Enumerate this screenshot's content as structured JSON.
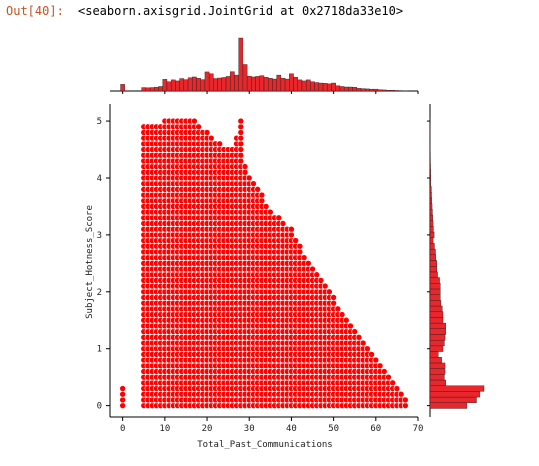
{
  "cell": {
    "prompt": "Out[40]:",
    "repr": "<seaborn.axisgrid.JointGrid at 0x2718da33e10>"
  },
  "colors": {
    "point": "#ff0000",
    "point_edge": "#ffffff",
    "bar": "#e8262b",
    "bar_edge": "#222222",
    "axis": "#000000"
  },
  "chart_data": [
    {
      "type": "scatter",
      "role": "joint",
      "xlabel": "Total_Past_Communications",
      "ylabel": "Subject_Hotness_Score",
      "xlim": [
        -3,
        70
      ],
      "ylim": [
        -0.2,
        5.3
      ],
      "xticks": [
        0,
        10,
        20,
        30,
        40,
        50,
        60,
        70
      ],
      "yticks": [
        0,
        1,
        2,
        3,
        4,
        5
      ],
      "grid": false,
      "description_points": {
        "x_zero_column": {
          "x": 0,
          "y": [
            0,
            0.1,
            0.2,
            0.3
          ]
        },
        "filled_region": {
          "x_min": 5,
          "y_step": 0.1
        },
        "upper_envelope": [
          [
            5,
            4.9
          ],
          [
            7,
            4.9
          ],
          [
            10,
            5.0
          ],
          [
            13,
            5.0
          ],
          [
            17,
            5.0
          ],
          [
            20,
            4.8
          ],
          [
            23,
            4.6
          ],
          [
            26,
            4.5
          ],
          [
            28,
            5.0
          ],
          [
            29,
            4.2
          ],
          [
            31,
            3.9
          ],
          [
            33,
            3.7
          ],
          [
            35,
            3.4
          ],
          [
            37,
            3.3
          ],
          [
            40,
            3.1
          ],
          [
            42,
            2.8
          ],
          [
            44,
            2.5
          ],
          [
            46,
            2.3
          ],
          [
            48,
            2.1
          ],
          [
            50,
            1.9
          ],
          [
            52,
            1.6
          ],
          [
            54,
            1.4
          ],
          [
            56,
            1.2
          ],
          [
            58,
            1.0
          ],
          [
            60,
            0.8
          ],
          [
            62,
            0.6
          ],
          [
            64,
            0.4
          ],
          [
            66,
            0.2
          ],
          [
            67,
            0.1
          ]
        ]
      }
    },
    {
      "type": "bar",
      "role": "marginal-x",
      "x": [
        0,
        5,
        6,
        7,
        8,
        9,
        10,
        11,
        12,
        13,
        14,
        15,
        16,
        17,
        18,
        19,
        20,
        21,
        22,
        23,
        24,
        25,
        26,
        27,
        28,
        29,
        30,
        31,
        32,
        33,
        34,
        35,
        36,
        37,
        38,
        39,
        40,
        41,
        42,
        43,
        44,
        45,
        46,
        47,
        48,
        49,
        50,
        51,
        52,
        53,
        54,
        55,
        56,
        57,
        58,
        59,
        60,
        61,
        62,
        63,
        64,
        65,
        66,
        67
      ],
      "values": [
        250,
        130,
        120,
        130,
        140,
        170,
        440,
        350,
        420,
        380,
        470,
        430,
        500,
        530,
        480,
        430,
        720,
        650,
        470,
        490,
        510,
        550,
        730,
        600,
        2000,
        1000,
        560,
        530,
        550,
        580,
        520,
        480,
        450,
        600,
        480,
        450,
        650,
        520,
        420,
        380,
        420,
        350,
        320,
        300,
        290,
        270,
        300,
        200,
        170,
        150,
        150,
        140,
        100,
        90,
        80,
        70,
        70,
        50,
        40,
        30,
        30,
        20,
        15,
        10
      ]
    },
    {
      "type": "bar",
      "role": "marginal-y",
      "orientation": "horizontal",
      "y": [
        0.0,
        0.1,
        0.2,
        0.3,
        0.4,
        0.5,
        0.6,
        0.7,
        0.8,
        0.9,
        1.0,
        1.1,
        1.2,
        1.3,
        1.4,
        1.5,
        1.6,
        1.7,
        1.8,
        1.9,
        2.0,
        2.1,
        2.2,
        2.3,
        2.4,
        2.5,
        2.6,
        2.7,
        2.8,
        2.9,
        3.0,
        3.1,
        3.2,
        3.3,
        3.4,
        3.5,
        3.6,
        3.7,
        3.8,
        3.9,
        4.0,
        4.1,
        4.2,
        4.3,
        4.4,
        4.5,
        4.6,
        4.7,
        4.8,
        4.9,
        5.0
      ],
      "values": [
        5400,
        6800,
        7300,
        7900,
        2300,
        2100,
        2200,
        2200,
        1700,
        1200,
        1900,
        2100,
        2200,
        2300,
        2300,
        1900,
        1900,
        1800,
        1600,
        1500,
        1500,
        1500,
        1400,
        1100,
        1000,
        1000,
        850,
        800,
        650,
        450,
        600,
        500,
        450,
        400,
        350,
        300,
        250,
        220,
        200,
        120,
        120,
        100,
        80,
        60,
        50,
        40,
        30,
        25,
        20,
        10,
        5
      ]
    }
  ]
}
